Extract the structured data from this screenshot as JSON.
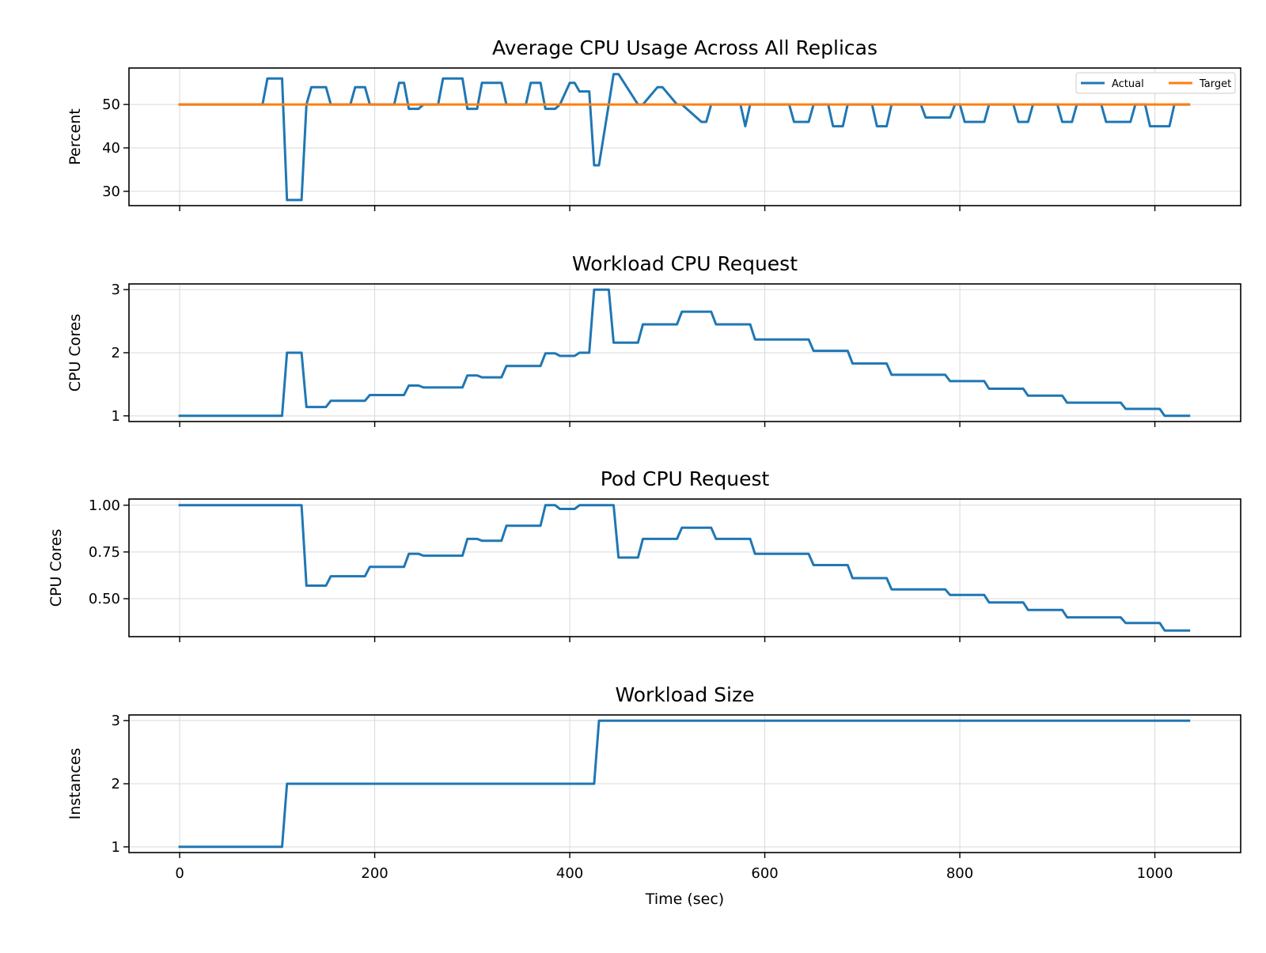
{
  "figure": {
    "x_axis_label": "Time (sec)",
    "x_ticks": [
      0,
      200,
      400,
      600,
      800,
      1000
    ]
  },
  "colors": {
    "actual": "#1f77b4",
    "target": "#ff7f0e",
    "grid": "#d9d9d9",
    "frame": "#000000"
  },
  "chart_data": [
    {
      "type": "line",
      "title": "Average CPU Usage Across All Replicas",
      "xlabel": "",
      "ylabel": "Percent",
      "xlim": [
        -52,
        1088
      ],
      "ylim": [
        26.7,
        58.4
      ],
      "y_ticks": [
        30,
        40,
        50
      ],
      "y_tick_labels": [
        "30",
        "40",
        "50"
      ],
      "grid": true,
      "legend": {
        "placement": "top-right",
        "entries": [
          "Actual",
          "Target"
        ]
      },
      "series": [
        {
          "name": "Actual",
          "color": "#1f77b4",
          "x": [
            0,
            85,
            90,
            105,
            110,
            125,
            130,
            135,
            150,
            155,
            175,
            180,
            190,
            195,
            220,
            225,
            230,
            235,
            245,
            250,
            265,
            270,
            290,
            295,
            305,
            310,
            330,
            335,
            355,
            360,
            370,
            375,
            385,
            390,
            400,
            405,
            410,
            420,
            425,
            430,
            445,
            450,
            470,
            475,
            490,
            495,
            510,
            515,
            535,
            540,
            545,
            575,
            580,
            585,
            625,
            630,
            645,
            650,
            665,
            670,
            680,
            685,
            710,
            715,
            725,
            730,
            760,
            765,
            790,
            795,
            800,
            805,
            825,
            830,
            855,
            860,
            870,
            875,
            900,
            905,
            915,
            920,
            945,
            950,
            975,
            980,
            990,
            995,
            1015,
            1020,
            1035
          ],
          "y": [
            50,
            50,
            56,
            56,
            28,
            28,
            50,
            54,
            54,
            50,
            50,
            54,
            54,
            50,
            50,
            55,
            55,
            49,
            49,
            50,
            50,
            56,
            56,
            49,
            49,
            55,
            55,
            50,
            50,
            55,
            55,
            49,
            49,
            50,
            55,
            55,
            53,
            53,
            36,
            36,
            57,
            57,
            50,
            50,
            54,
            54,
            50,
            50,
            46,
            46,
            50,
            50,
            45,
            50,
            50,
            46,
            46,
            50,
            50,
            45,
            45,
            50,
            50,
            45,
            45,
            50,
            50,
            47,
            47,
            50,
            50,
            46,
            46,
            50,
            50,
            46,
            46,
            50,
            50,
            46,
            46,
            50,
            50,
            46,
            46,
            50,
            50,
            45,
            45,
            50,
            50
          ]
        },
        {
          "name": "Target",
          "color": "#ff7f0e",
          "x": [
            0,
            1035
          ],
          "y": [
            50,
            50
          ]
        }
      ]
    },
    {
      "type": "line",
      "title": "Workload CPU Request",
      "xlabel": "",
      "ylabel": "CPU Cores",
      "xlim": [
        -52,
        1088
      ],
      "ylim": [
        0.91,
        3.09
      ],
      "y_ticks": [
        1,
        2,
        3
      ],
      "y_tick_labels": [
        "1",
        "2",
        "3"
      ],
      "grid": true,
      "series": [
        {
          "name": "",
          "color": "#1f77b4",
          "x": [
            0,
            105,
            110,
            125,
            130,
            150,
            155,
            190,
            195,
            230,
            235,
            245,
            250,
            290,
            295,
            305,
            310,
            330,
            335,
            370,
            375,
            385,
            390,
            405,
            410,
            420,
            425,
            440,
            445,
            470,
            475,
            510,
            515,
            545,
            550,
            585,
            590,
            645,
            650,
            685,
            690,
            725,
            730,
            785,
            790,
            825,
            830,
            865,
            870,
            905,
            910,
            965,
            970,
            1005,
            1010,
            1035
          ],
          "y": [
            1.0,
            1.0,
            2.0,
            2.0,
            1.14,
            1.14,
            1.24,
            1.24,
            1.33,
            1.33,
            1.48,
            1.48,
            1.45,
            1.45,
            1.64,
            1.64,
            1.61,
            1.61,
            1.79,
            1.79,
            1.99,
            1.99,
            1.95,
            1.95,
            2.0,
            2.0,
            3.0,
            3.0,
            2.16,
            2.16,
            2.45,
            2.45,
            2.65,
            2.65,
            2.45,
            2.45,
            2.21,
            2.21,
            2.03,
            2.03,
            1.83,
            1.83,
            1.65,
            1.65,
            1.55,
            1.55,
            1.43,
            1.43,
            1.32,
            1.32,
            1.21,
            1.21,
            1.11,
            1.11,
            1.0,
            1.0
          ]
        }
      ]
    },
    {
      "type": "line",
      "title": "Pod CPU Request",
      "xlabel": "",
      "ylabel": "CPU Cores",
      "xlim": [
        -52,
        1088
      ],
      "ylim": [
        0.297,
        1.033
      ],
      "y_ticks": [
        0.5,
        0.75,
        1.0
      ],
      "y_tick_labels": [
        "0.50",
        "0.75",
        "1.00"
      ],
      "grid": true,
      "series": [
        {
          "name": "",
          "color": "#1f77b4",
          "x": [
            0,
            125,
            130,
            150,
            155,
            190,
            195,
            230,
            235,
            245,
            250,
            290,
            295,
            305,
            310,
            330,
            335,
            370,
            375,
            385,
            390,
            405,
            410,
            445,
            450,
            470,
            475,
            510,
            515,
            545,
            550,
            585,
            590,
            645,
            650,
            685,
            690,
            725,
            730,
            785,
            790,
            825,
            830,
            865,
            870,
            905,
            910,
            965,
            970,
            1005,
            1010,
            1035
          ],
          "y": [
            1.0,
            1.0,
            0.57,
            0.57,
            0.62,
            0.62,
            0.67,
            0.67,
            0.74,
            0.74,
            0.73,
            0.73,
            0.82,
            0.82,
            0.81,
            0.81,
            0.89,
            0.89,
            1.0,
            1.0,
            0.98,
            0.98,
            1.0,
            1.0,
            0.72,
            0.72,
            0.82,
            0.82,
            0.88,
            0.88,
            0.82,
            0.82,
            0.74,
            0.74,
            0.68,
            0.68,
            0.61,
            0.61,
            0.55,
            0.55,
            0.52,
            0.52,
            0.48,
            0.48,
            0.44,
            0.44,
            0.4,
            0.4,
            0.37,
            0.37,
            0.33,
            0.33
          ]
        }
      ]
    },
    {
      "type": "line",
      "title": "Workload Size",
      "xlabel": "Time (sec)",
      "ylabel": "Instances",
      "xlim": [
        -52,
        1088
      ],
      "ylim": [
        0.91,
        3.09
      ],
      "y_ticks": [
        1,
        2,
        3
      ],
      "y_tick_labels": [
        "1",
        "2",
        "3"
      ],
      "grid": true,
      "series": [
        {
          "name": "",
          "color": "#1f77b4",
          "x": [
            0,
            105,
            110,
            425,
            430,
            1035
          ],
          "y": [
            1,
            1,
            2,
            2,
            3,
            3
          ]
        }
      ]
    }
  ]
}
